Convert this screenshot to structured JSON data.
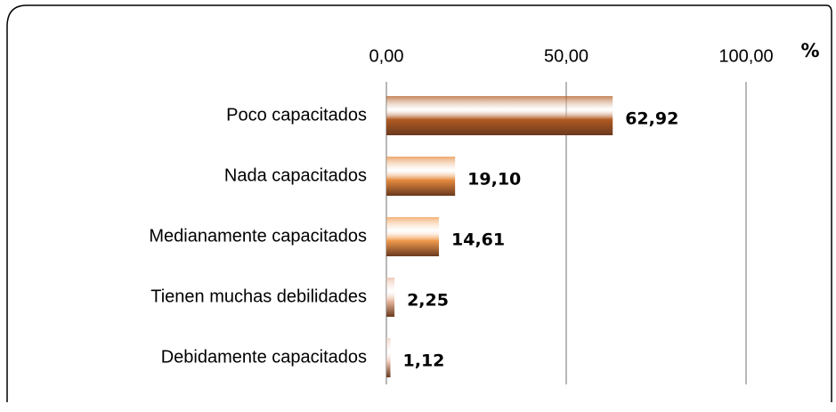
{
  "chart_data": {
    "type": "bar",
    "orientation": "horizontal",
    "categories": [
      "Poco capacitados",
      "Nada capacitados",
      "Medianamente capacitados",
      "Tienen muchas debilidades",
      "Debidamente capacitados"
    ],
    "values": [
      62.92,
      19.1,
      14.61,
      2.25,
      1.12
    ],
    "value_labels": [
      "62,92",
      "19,10",
      "14,61",
      "2,25",
      "1,12"
    ],
    "colors": [
      "#b05a22",
      "#e58a3e",
      "#f09a4e",
      "#e8b8a0",
      "#efc8b8"
    ],
    "xlim": [
      0,
      100
    ],
    "xticks": [
      {
        "value": 0,
        "label": "0,00"
      },
      {
        "value": 50,
        "label": "50,00"
      },
      {
        "value": 100,
        "label": "100,00"
      }
    ],
    "x_unit_label": "%",
    "grid": true
  }
}
